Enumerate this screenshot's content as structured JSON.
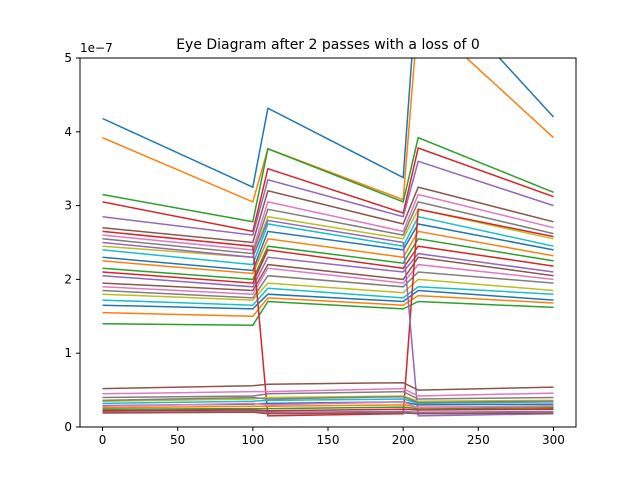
{
  "chart_data": {
    "type": "line",
    "title": "Eye Diagram after 2 passes with a loss of 0",
    "xlabel": "",
    "ylabel": "",
    "xlim": [
      -15,
      315
    ],
    "ylim": [
      0,
      5e-07
    ],
    "xticks": [
      0,
      50,
      100,
      150,
      200,
      250,
      300
    ],
    "xtick_labels": [
      "0",
      "50",
      "100",
      "150",
      "200",
      "250",
      "300"
    ],
    "yticks": [
      0,
      1e-07,
      2e-07,
      3e-07,
      4e-07,
      5e-07
    ],
    "ytick_labels": [
      "0",
      "1",
      "2",
      "3",
      "4",
      "5"
    ],
    "offset_text": "1e−7",
    "grid": false,
    "legend": "none",
    "transition_times": [
      10,
      110,
      210
    ],
    "segment_length": 90,
    "colors": [
      "#1f77b4",
      "#ff7f0e",
      "#2ca02c",
      "#d62728",
      "#9467bd",
      "#8c564b",
      "#e377c2",
      "#7f7f7f",
      "#bcbd22",
      "#17becf"
    ],
    "series": [
      {
        "values": [
          4.18e-07,
          3.25e-07,
          4.32e-07,
          3.38e-07,
          6.2e-07,
          4.2e-07
        ]
      },
      {
        "values": [
          3.92e-07,
          3.05e-07,
          3.77e-07,
          3.08e-07,
          5.6e-07,
          3.92e-07
        ]
      },
      {
        "values": [
          3.15e-07,
          2.78e-07,
          3.77e-07,
          3.05e-07,
          3.92e-07,
          3.18e-07
        ]
      },
      {
        "values": [
          3.05e-07,
          2.65e-07,
          3.5e-07,
          2.9e-07,
          3.78e-07,
          3.12e-07
        ]
      },
      {
        "values": [
          2.85e-07,
          2.6e-07,
          3.35e-07,
          2.85e-07,
          3.6e-07,
          3e-07
        ]
      },
      {
        "values": [
          2.7e-07,
          2.5e-07,
          3.2e-07,
          2.75e-07,
          3.25e-07,
          2.78e-07
        ]
      },
      {
        "values": [
          2.6e-07,
          2.4e-07,
          3.05e-07,
          2.65e-07,
          3.15e-07,
          2.7e-07
        ]
      },
      {
        "values": [
          2.55e-07,
          2.35e-07,
          2.95e-07,
          2.6e-07,
          3.05e-07,
          2.62e-07
        ]
      },
      {
        "values": [
          2.45e-07,
          2.3e-07,
          2.85e-07,
          2.55e-07,
          2.95e-07,
          2.55e-07
        ]
      },
      {
        "values": [
          2.4e-07,
          2.2e-07,
          2.75e-07,
          2.45e-07,
          2.85e-07,
          2.45e-07
        ]
      },
      {
        "values": [
          2.3e-07,
          2.12e-07,
          2.65e-07,
          2.4e-07,
          2.75e-07,
          2.4e-07
        ]
      },
      {
        "values": [
          2.25e-07,
          2.08e-07,
          2.55e-07,
          2.3e-07,
          2.65e-07,
          2.32e-07
        ]
      },
      {
        "values": [
          2.15e-07,
          2e-07,
          2.45e-07,
          2.22e-07,
          2.55e-07,
          2.25e-07
        ]
      },
      {
        "values": [
          2.1e-07,
          1.95e-07,
          2.4e-07,
          2.15e-07,
          2.45e-07,
          2.18e-07
        ]
      },
      {
        "values": [
          2.05e-07,
          1.9e-07,
          2.3e-07,
          2.1e-07,
          2.35e-07,
          2.1e-07
        ]
      },
      {
        "values": [
          1.95e-07,
          1.85e-07,
          2.2e-07,
          2e-07,
          2.3e-07,
          2.05e-07
        ]
      },
      {
        "values": [
          1.9e-07,
          1.8e-07,
          2.15e-07,
          1.95e-07,
          2.2e-07,
          2e-07
        ]
      },
      {
        "values": [
          1.85e-07,
          1.75e-07,
          2.05e-07,
          1.9e-07,
          2.1e-07,
          1.95e-07
        ]
      },
      {
        "values": [
          1.8e-07,
          1.72e-07,
          1.95e-07,
          1.82e-07,
          2e-07,
          1.85e-07
        ]
      },
      {
        "values": [
          1.72e-07,
          1.65e-07,
          1.88e-07,
          1.75e-07,
          1.9e-07,
          1.8e-07
        ]
      },
      {
        "values": [
          1.65e-07,
          1.6e-07,
          1.8e-07,
          1.7e-07,
          1.85e-07,
          1.72e-07
        ]
      },
      {
        "values": [
          1.55e-07,
          1.5e-07,
          1.75e-07,
          1.65e-07,
          1.78e-07,
          1.68e-07
        ]
      },
      {
        "values": [
          1.4e-07,
          1.38e-07,
          1.7e-07,
          1.6e-07,
          1.7e-07,
          1.62e-07
        ]
      },
      {
        "values": [
          2.65e-07,
          2.45e-07,
          1.5e-08,
          1.8e-08,
          2.95e-07,
          2.58e-07
        ]
      },
      {
        "values": [
          2.5e-07,
          2.3e-07,
          2.8e-07,
          2.5e-07,
          1.5e-08,
          1.8e-08
        ]
      },
      {
        "values": [
          5.2e-08,
          5.6e-08,
          5.8e-08,
          6e-08,
          5e-08,
          5.4e-08
        ]
      },
      {
        "values": [
          4.5e-08,
          4.8e-08,
          4.8e-08,
          5.2e-08,
          4.2e-08,
          4.6e-08
        ]
      },
      {
        "values": [
          4e-08,
          4.2e-08,
          4.5e-08,
          4.8e-08,
          3.8e-08,
          4e-08
        ]
      },
      {
        "values": [
          3.5e-08,
          3.8e-08,
          4e-08,
          4.2e-08,
          3.5e-08,
          3.6e-08
        ]
      },
      {
        "values": [
          3.2e-08,
          3.5e-08,
          3.6e-08,
          3.8e-08,
          3.2e-08,
          3.4e-08
        ]
      },
      {
        "values": [
          2.9e-08,
          3.1e-08,
          3.2e-08,
          3.4e-08,
          3e-08,
          3.1e-08
        ]
      },
      {
        "values": [
          2.6e-08,
          2.8e-08,
          2.8e-08,
          3e-08,
          2.7e-08,
          2.8e-08
        ]
      },
      {
        "values": [
          2.4e-08,
          2.5e-08,
          2.5e-08,
          2.7e-08,
          2.5e-08,
          2.6e-08
        ]
      },
      {
        "values": [
          2.2e-08,
          2.3e-08,
          2.2e-08,
          2.4e-08,
          2.3e-08,
          2.4e-08
        ]
      },
      {
        "values": [
          2e-08,
          2.1e-08,
          2e-08,
          2.1e-08,
          2e-08,
          2.1e-08
        ]
      },
      {
        "values": [
          1.9e-08,
          2e-08,
          1.8e-08,
          1.9e-08,
          1.8e-08,
          1.9e-08
        ]
      },
      {
        "values": [
          2.8e-08,
          3.2e-08,
          3e-08,
          3.4e-08,
          2.6e-08,
          2.9e-08
        ]
      },
      {
        "values": [
          3.6e-08,
          4e-08,
          3.8e-08,
          4.1e-08,
          3.3e-08,
          3.5e-08
        ]
      }
    ]
  }
}
